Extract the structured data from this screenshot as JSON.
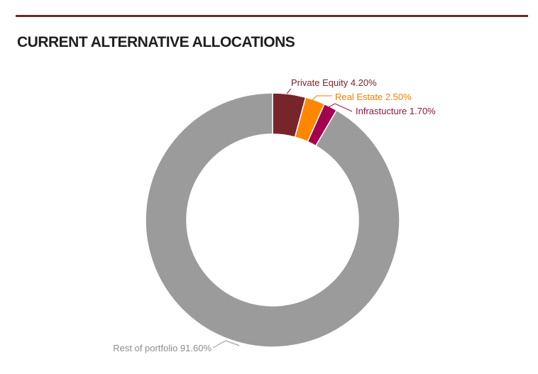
{
  "header": {
    "title": "CURRENT ALTERNATIVE ALLOCATIONS"
  },
  "colors": {
    "rule": "#6e2a26",
    "title": "#1f1f1f"
  },
  "chart_data": {
    "type": "pie",
    "variant": "donut",
    "title": "CURRENT ALTERNATIVE ALLOCATIONS",
    "unit": "%",
    "slices": [
      {
        "name": "Private Equity",
        "value": 4.2,
        "label": "Private Equity 4.20%",
        "color": "#77242a",
        "text_color": "#77242a"
      },
      {
        "name": "Real Estate",
        "value": 2.5,
        "label": "Real Estate 2.50%",
        "color": "#ff8700",
        "text_color": "#f07f0a"
      },
      {
        "name": "Infrastucture",
        "value": 1.7,
        "label": "Infrastucture 1.70%",
        "color": "#a3004f",
        "text_color": "#8c1644"
      },
      {
        "name": "Rest of portfolio",
        "value": 91.6,
        "label": "Rest of portfolio 91.60%",
        "color": "#9b9b9b",
        "text_color": "#8c8c8c"
      }
    ],
    "legend": "none"
  }
}
